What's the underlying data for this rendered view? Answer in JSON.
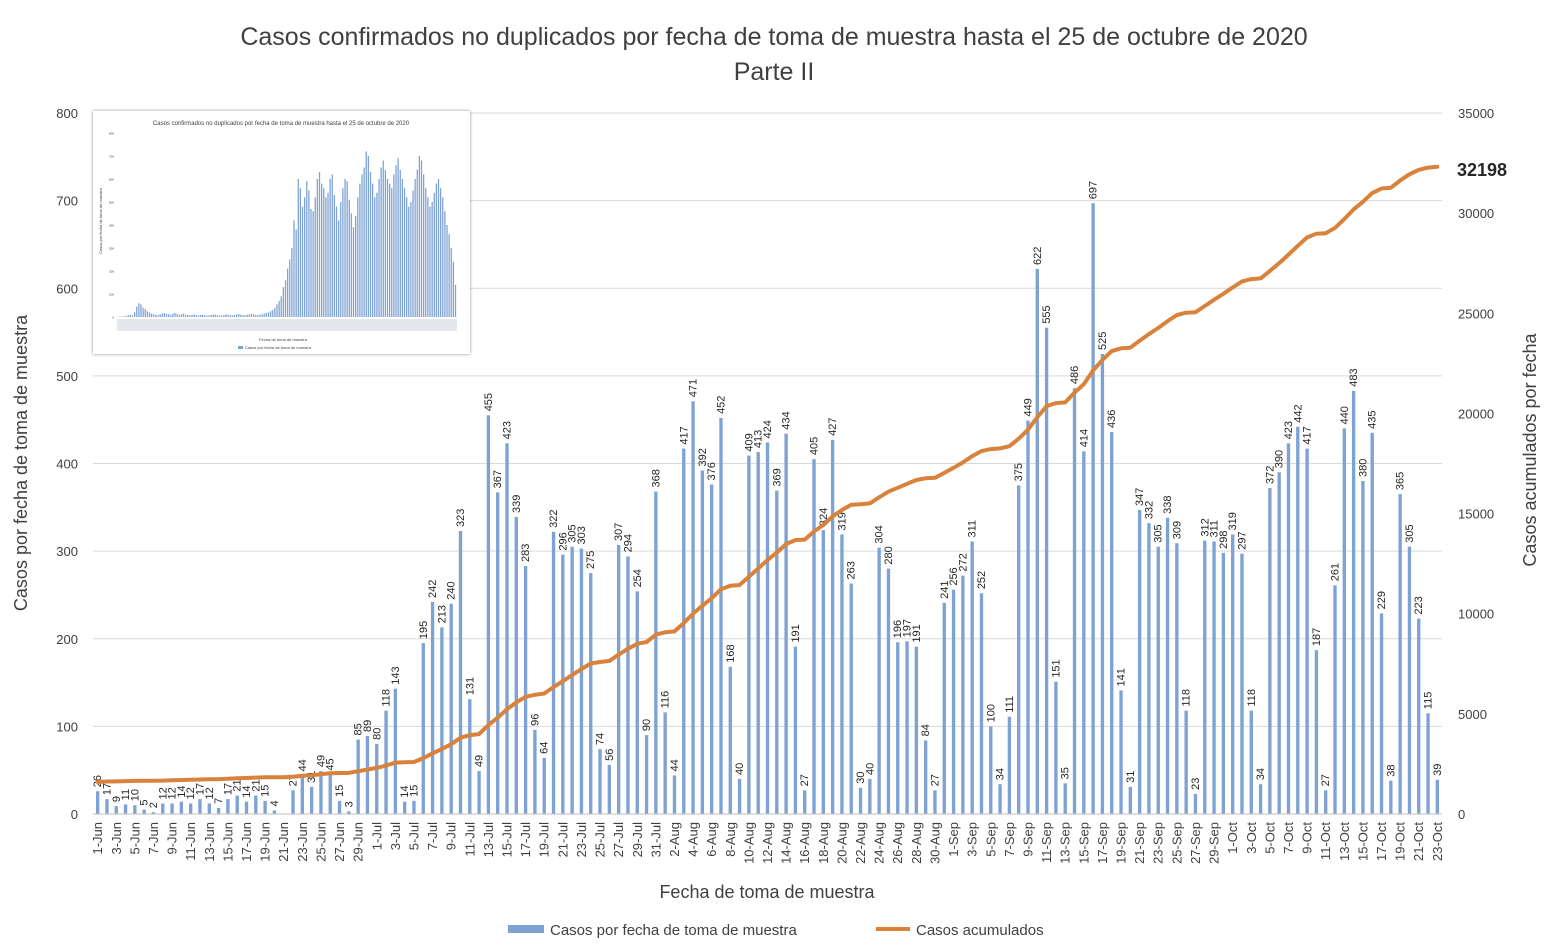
{
  "chart_data": {
    "type": "bar",
    "title": "Casos confirmados no duplicados por fecha de toma de muestra hasta el 25 de octubre de 2020",
    "subtitle": "Parte II",
    "xlabel": "Fecha de toma de muestra",
    "ylabel": "Casos por fecha de toma de muestra",
    "y2label": "Casos acumulados por fecha",
    "ylim": [
      0,
      800
    ],
    "y2lim": [
      0,
      35000
    ],
    "yticks": [
      "0",
      "100",
      "200",
      "300",
      "400",
      "500",
      "600",
      "700",
      "800"
    ],
    "y2ticks": [
      "0",
      "5000",
      "10000",
      "15000",
      "20000",
      "25000",
      "30000",
      "35000"
    ],
    "grid": "horizontal",
    "legend_position": "bottom",
    "x_tick_labels": [
      "1-Jun",
      "3-Jun",
      "5-Jun",
      "7-Jun",
      "9-Jun",
      "11-Jun",
      "13-Jun",
      "15-Jun",
      "17-Jun",
      "19-Jun",
      "21-Jun",
      "23-Jun",
      "25-Jun",
      "27-Jun",
      "29-Jun",
      "1-Jul",
      "3-Jul",
      "5-Jul",
      "7-Jul",
      "9-Jul",
      "11-Jul",
      "13-Jul",
      "15-Jul",
      "17-Jul",
      "19-Jul",
      "21-Jul",
      "23-Jul",
      "25-Jul",
      "27-Jul",
      "29-Jul",
      "31-Jul",
      "2-Aug",
      "4-Aug",
      "6-Aug",
      "8-Aug",
      "10-Aug",
      "12-Aug",
      "14-Aug",
      "16-Aug",
      "18-Aug",
      "20-Aug",
      "22-Aug",
      "24-Aug",
      "26-Aug",
      "28-Aug",
      "30-Aug",
      "1-Sep",
      "3-Sep",
      "5-Sep",
      "7-Sep",
      "9-Sep",
      "11-Sep",
      "13-Sep",
      "15-Sep",
      "17-Sep",
      "19-Sep",
      "21-Sep",
      "23-Sep",
      "25-Sep",
      "27-Sep",
      "29-Sep",
      "1-Oct",
      "3-Oct",
      "5-Oct",
      "7-Oct",
      "9-Oct",
      "11-Oct",
      "13-Oct",
      "15-Oct",
      "17-Oct",
      "19-Oct",
      "21-Oct",
      "23-Oct"
    ],
    "daily_values": [
      26,
      17,
      9,
      11,
      10,
      5,
      2,
      12,
      12,
      14,
      12,
      17,
      12,
      7,
      17,
      21,
      14,
      21,
      15,
      4,
      0,
      27,
      44,
      31,
      49,
      45,
      15,
      3,
      85,
      89,
      80,
      118,
      143,
      14,
      15,
      195,
      242,
      213,
      240,
      323,
      131,
      49,
      455,
      367,
      423,
      339,
      283,
      96,
      64,
      322,
      296,
      305,
      303,
      275,
      74,
      56,
      307,
      294,
      254,
      90,
      368,
      116,
      44,
      417,
      471,
      392,
      376,
      452,
      168,
      40,
      409,
      413,
      424,
      369,
      434,
      191,
      27,
      405,
      324,
      427,
      319,
      263,
      30,
      40,
      304,
      280,
      196,
      197,
      191,
      84,
      27,
      241,
      256,
      272,
      311,
      252,
      100,
      34,
      111,
      375,
      449,
      622,
      555,
      151,
      35,
      486,
      414,
      697,
      525,
      436,
      141,
      31,
      347,
      332,
      305,
      338,
      309,
      118,
      23,
      312,
      311,
      298,
      319,
      297,
      118,
      34,
      372,
      390,
      423,
      442,
      417,
      187,
      27,
      261,
      440,
      483,
      380,
      435,
      229,
      38,
      365,
      305,
      223,
      115,
      39
    ],
    "series": [
      {
        "name": "Casos por fecha de toma de muestra",
        "type": "bar",
        "color": "#7EA2D4"
      },
      {
        "name": "Casos acumulados",
        "type": "line",
        "color": "#D9823B"
      }
    ],
    "cumulative_start": 1578,
    "final_cumulative_label": "32198"
  },
  "inset": {
    "title": "Casos confirmados no duplicados por fecha de toma de muestra hasta el 25 de octubre de 2020",
    "ylabel": "Casos por fecha de toma de muestra",
    "xlabel": "Fecha de toma de muestra",
    "legend": "Casos por fecha de toma de muestra",
    "yticks": [
      "0",
      "100",
      "200",
      "300",
      "400",
      "500",
      "600",
      "700",
      "800"
    ],
    "values": [
      1,
      2,
      1,
      3,
      5,
      8,
      10,
      7,
      20,
      45,
      60,
      55,
      40,
      35,
      25,
      20,
      15,
      12,
      10,
      8,
      12,
      15,
      18,
      14,
      12,
      10,
      15,
      18,
      13,
      10,
      12,
      15,
      10,
      9,
      8,
      10,
      12,
      8,
      7,
      9,
      10,
      8,
      6,
      7,
      9,
      11,
      10,
      8,
      7,
      6,
      9,
      12,
      10,
      8,
      7,
      9,
      11,
      13,
      10,
      9,
      8,
      10,
      12,
      14,
      11,
      9,
      8,
      10,
      12,
      15,
      18,
      20,
      25,
      30,
      40,
      55,
      70,
      90,
      130,
      160,
      210,
      250,
      300,
      420,
      380,
      600,
      560,
      480,
      520,
      590,
      550,
      470,
      460,
      520,
      600,
      630,
      580,
      560,
      520,
      540,
      600,
      620,
      530,
      480,
      420,
      500,
      560,
      600,
      590,
      510,
      450,
      390,
      440,
      520,
      580,
      620,
      650,
      720,
      700,
      630,
      580,
      520,
      540,
      600,
      650,
      680,
      640,
      600,
      580,
      560,
      620,
      660,
      690,
      640,
      600,
      560,
      520,
      480,
      500,
      550,
      600,
      640,
      700,
      680,
      620,
      560,
      520,
      480,
      500,
      540,
      580,
      600,
      560,
      520,
      460,
      400,
      360,
      300,
      240,
      140
    ]
  }
}
